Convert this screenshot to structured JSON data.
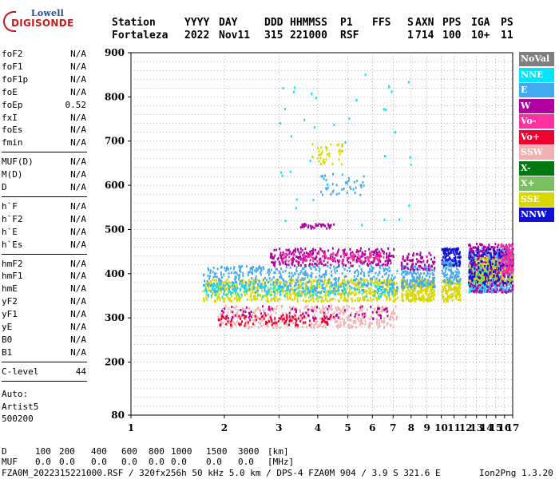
{
  "logo": {
    "line1": "Lowell",
    "line2": "DIGISONDE"
  },
  "header": {
    "row1": [
      "Station",
      "YYYY",
      "DAY",
      "DDD",
      "HHMMSS",
      "P1",
      "FFS",
      "S",
      "AXN",
      "PPS",
      "IGA",
      "PS"
    ],
    "row2": [
      "Fortaleza",
      "2022",
      "Nov11",
      "315",
      "221000",
      "RSF",
      "",
      "1",
      "714",
      "100",
      "10+",
      "11"
    ]
  },
  "params": {
    "group1": [
      {
        "k": "foF2",
        "v": "N/A"
      },
      {
        "k": "foF1",
        "v": "N/A"
      },
      {
        "k": "foF1p",
        "v": "N/A"
      },
      {
        "k": "foE",
        "v": "N/A"
      },
      {
        "k": "foEp",
        "v": "0.52"
      },
      {
        "k": "fxI",
        "v": "N/A"
      },
      {
        "k": "foEs",
        "v": "N/A"
      },
      {
        "k": "fmin",
        "v": "N/A"
      }
    ],
    "group2": [
      {
        "k": "MUF(D)",
        "v": "N/A"
      },
      {
        "k": "M(D)",
        "v": "N/A"
      },
      {
        "k": "D",
        "v": "N/A"
      }
    ],
    "group3": [
      {
        "k": "h`F",
        "v": "N/A"
      },
      {
        "k": "h`F2",
        "v": "N/A"
      },
      {
        "k": "h`E",
        "v": "N/A"
      },
      {
        "k": "h`Es",
        "v": "N/A"
      }
    ],
    "group4": [
      {
        "k": "hmF2",
        "v": "N/A"
      },
      {
        "k": "hmF1",
        "v": "N/A"
      },
      {
        "k": "hmE",
        "v": "N/A"
      },
      {
        "k": "yF2",
        "v": "N/A"
      },
      {
        "k": "yF1",
        "v": "N/A"
      },
      {
        "k": "yE",
        "v": "N/A"
      },
      {
        "k": "B0",
        "v": "N/A"
      },
      {
        "k": "B1",
        "v": "N/A"
      }
    ],
    "clevel": {
      "k": "C-level",
      "v": "44"
    },
    "auto": [
      "Auto:",
      "Artist5",
      "500200"
    ]
  },
  "legend": [
    {
      "label": "NoVal",
      "color": "#7f7f7f"
    },
    {
      "label": "NNE",
      "color": "#00e5ff"
    },
    {
      "label": "E",
      "color": "#44aaf0"
    },
    {
      "label": "W",
      "color": "#b000a0"
    },
    {
      "label": "Vo-",
      "color": "#ff30a0"
    },
    {
      "label": "Vo+",
      "color": "#ee0030"
    },
    {
      "label": "SSW",
      "color": "#f4b0b0"
    },
    {
      "label": "X-",
      "color": "#007a10"
    },
    {
      "label": "X+",
      "color": "#7ac060"
    },
    {
      "label": "SSE",
      "color": "#d8d800"
    },
    {
      "label": "NNW",
      "color": "#1010d8"
    }
  ],
  "bottom": {
    "row1": [
      "D",
      "100",
      "200",
      "400",
      "600",
      "800",
      "1000",
      "1500",
      "3000",
      "[km]"
    ],
    "row2": [
      "MUF",
      "0.0",
      "0.0",
      "0.0",
      "0.0",
      "0.0",
      "0.0",
      "0.0",
      "0.0",
      "[MHz]"
    ],
    "footer": "FZA0M_2022315221000.RSF / 320fx256h 50 kHz 5.0 km / DPS-4 FZA0M 904 / 3.9 S 321.6 E",
    "version": "Ion2Png 1.3.20"
  },
  "chart_data": {
    "type": "scatter",
    "xlim": [
      1,
      17
    ],
    "ylim": [
      80,
      900
    ],
    "xticks": [
      1,
      2,
      3,
      4,
      5,
      6,
      7,
      8,
      9,
      10,
      11,
      12,
      13,
      14,
      15,
      16,
      17
    ],
    "yticks": [
      80,
      200,
      300,
      400,
      500,
      600,
      700,
      800,
      900
    ],
    "grid": true,
    "legend_position": "right",
    "x_scale": "log",
    "clusters": [
      {
        "series": "SSW",
        "x": [
          1.9,
          7.2
        ],
        "y": [
          280,
          330
        ],
        "n": 420
      },
      {
        "series": "Vo+",
        "x": [
          1.9,
          4.5
        ],
        "y": [
          285,
          310
        ],
        "n": 120
      },
      {
        "series": "W",
        "x": [
          1.9,
          7.0
        ],
        "y": [
          300,
          330
        ],
        "n": 80
      },
      {
        "series": "SSE",
        "x": [
          1.7,
          7.2
        ],
        "y": [
          340,
          390
        ],
        "n": 700
      },
      {
        "series": "E",
        "x": [
          1.7,
          7.2
        ],
        "y": [
          360,
          420
        ],
        "n": 500
      },
      {
        "series": "NNE",
        "x": [
          1.7,
          7.0
        ],
        "y": [
          350,
          380
        ],
        "n": 150
      },
      {
        "series": "W",
        "x": [
          2.8,
          7.0
        ],
        "y": [
          420,
          460
        ],
        "n": 300
      },
      {
        "series": "Vo-",
        "x": [
          3.0,
          6.5
        ],
        "y": [
          430,
          450
        ],
        "n": 80
      },
      {
        "series": "W",
        "x": [
          3.5,
          4.5
        ],
        "y": [
          505,
          515
        ],
        "n": 40
      },
      {
        "series": "SSE",
        "x": [
          7.4,
          9.5
        ],
        "y": [
          340,
          390
        ],
        "n": 220
      },
      {
        "series": "E",
        "x": [
          7.4,
          9.5
        ],
        "y": [
          370,
          420
        ],
        "n": 160
      },
      {
        "series": "W",
        "x": [
          7.4,
          9.5
        ],
        "y": [
          410,
          450
        ],
        "n": 80
      },
      {
        "series": "SSE",
        "x": [
          10.0,
          11.5
        ],
        "y": [
          340,
          390
        ],
        "n": 120
      },
      {
        "series": "NNW",
        "x": [
          10.0,
          11.5
        ],
        "y": [
          420,
          460
        ],
        "n": 120
      },
      {
        "series": "E",
        "x": [
          10.0,
          11.5
        ],
        "y": [
          380,
          430
        ],
        "n": 80
      },
      {
        "series": "E",
        "x": [
          12.2,
          17.0
        ],
        "y": [
          360,
          460
        ],
        "n": 600
      },
      {
        "series": "NNE",
        "x": [
          12.2,
          14.0
        ],
        "y": [
          360,
          420
        ],
        "n": 150
      },
      {
        "series": "W",
        "x": [
          12.2,
          17.0
        ],
        "y": [
          360,
          470
        ],
        "n": 350
      },
      {
        "series": "SSE",
        "x": [
          12.2,
          17.0
        ],
        "y": [
          380,
          440
        ],
        "n": 200
      },
      {
        "series": "NNW",
        "x": [
          12.2,
          17.0
        ],
        "y": [
          380,
          460
        ],
        "n": 150
      },
      {
        "series": "Vo-",
        "x": [
          15.5,
          17.0
        ],
        "y": [
          400,
          470
        ],
        "n": 100
      },
      {
        "series": "SSE",
        "x": [
          3.8,
          4.8
        ],
        "y": [
          650,
          700
        ],
        "n": 40
      },
      {
        "series": "E",
        "x": [
          4.0,
          5.6
        ],
        "y": [
          580,
          630
        ],
        "n": 40
      },
      {
        "series": "NNE",
        "x": [
          3.0,
          8.5
        ],
        "y": [
          480,
          880
        ],
        "n": 40
      }
    ]
  }
}
